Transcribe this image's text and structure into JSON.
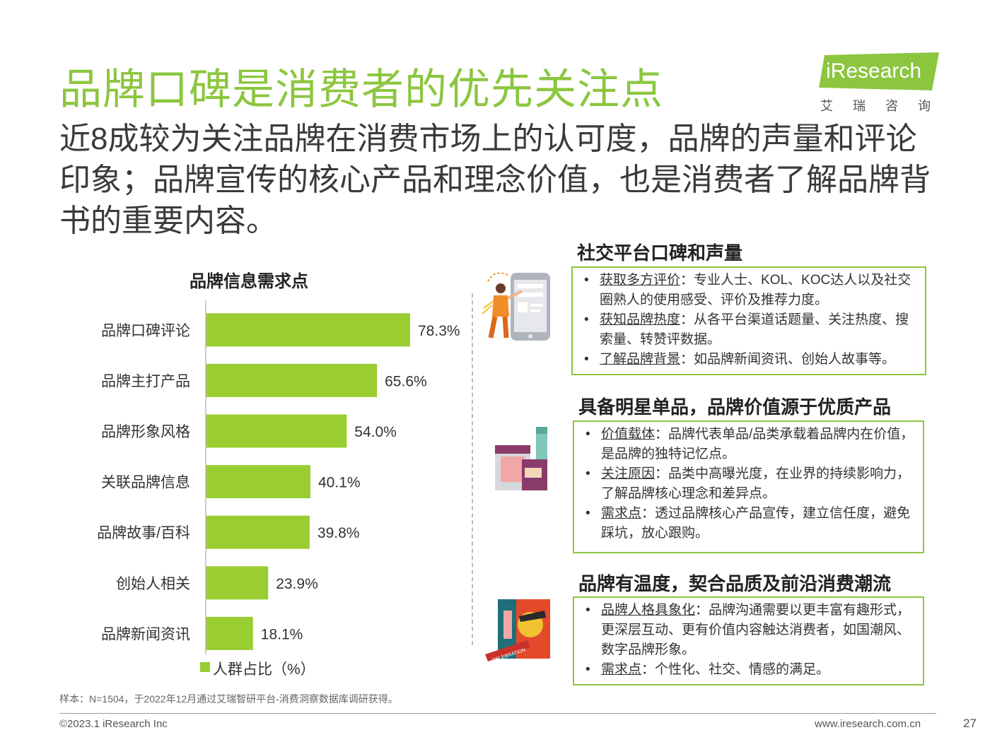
{
  "title": "品牌口碑是消费者的优先关注点",
  "subtitle": "近8成较为关注品牌在消费市场上的认可度，品牌的声量和评论印象；品牌宣传的核心产品和理念价值，也是消费者了解品牌背书的重要内容。",
  "logo": {
    "name": "iResearch",
    "subtitle": "艾瑞咨询"
  },
  "colors": {
    "accent": "#8cc63f",
    "bar": "#9acd32"
  },
  "chart_data": {
    "type": "bar",
    "orientation": "horizontal",
    "title": "品牌信息需求点",
    "categories": [
      "品牌口碑评论",
      "品牌主打产品",
      "品牌形象风格",
      "关联品牌信息",
      "品牌故事/百科",
      "创始人相关",
      "品牌新闻资讯"
    ],
    "series": [
      {
        "name": "人群占比（%）",
        "values": [
          78.3,
          65.6,
          54.0,
          40.1,
          39.8,
          23.9,
          18.1
        ]
      }
    ],
    "value_labels": [
      "78.3%",
      "65.6%",
      "54.0%",
      "40.1%",
      "39.8%",
      "23.9%",
      "18.1%"
    ],
    "xlim": [
      0,
      100
    ],
    "grid": false,
    "legend": "bottom"
  },
  "sections": [
    {
      "title": "社交平台口碑和声量",
      "icon": "person-phone-review-icon",
      "items": [
        {
          "key": "获取多方评价",
          "text": "：专业人士、KOL、KOC达人以及社交圈熟人的使用感受、评价及推荐力度。"
        },
        {
          "key": "获知品牌热度",
          "text": "：从各平台渠道话题量、关注热度、搜索量、转赞评数据。"
        },
        {
          "key": "了解品牌背景",
          "text": "：如品牌新闻资讯、创始人故事等。"
        }
      ]
    },
    {
      "title": "具备明星单品，品牌价值源于优质产品",
      "icon": "cosmetics-products-icon",
      "items": [
        {
          "key": "价值载体",
          "text": "：品牌代表单品/品类承载着品牌内在价值，是品牌的独特记忆点。"
        },
        {
          "key": "关注原因",
          "text": "：品类中高曝光度，在业界的持续影响力，了解品牌核心理念和差异点。"
        },
        {
          "key": "需求点",
          "text": "：透过品牌核心产品宣传，建立信任度，避免踩坑，放心跟购。"
        }
      ]
    },
    {
      "title": "品牌有温度，契合品质及前沿消费潮流",
      "icon": "celebration-poster-icon",
      "icon_text": "CELEBRATION",
      "items": [
        {
          "key": "品牌人格具象化",
          "text": "：品牌沟通需要以更丰富有趣形式，更深层互动、更有价值内容触达消费者，如国潮风、数字品牌形象。"
        },
        {
          "key": "需求点",
          "text": "：个性化、社交、情感的满足。"
        }
      ]
    }
  ],
  "footer": {
    "note": "样本：N=1504，于2022年12月通过艾瑞智研平台-消费洞察数据库调研获得。",
    "copyright": "©2023.1 iResearch Inc",
    "site": "www.iresearch.com.cn",
    "page": "27"
  }
}
